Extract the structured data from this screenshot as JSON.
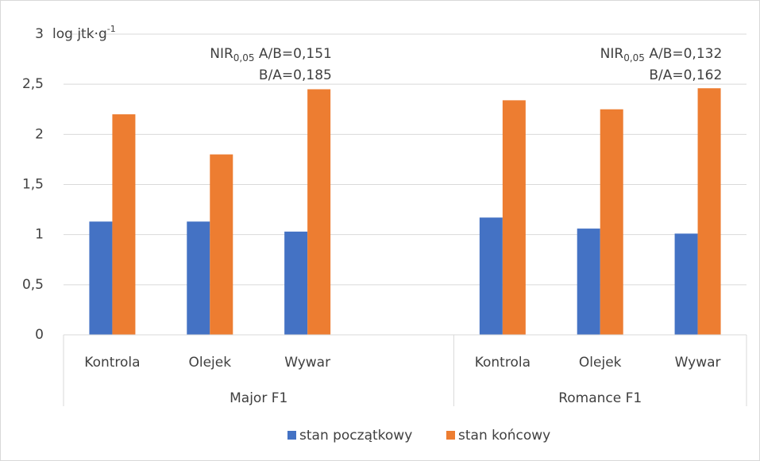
{
  "chart_data": {
    "type": "bar",
    "ylabel": {
      "text": "log jtk·g",
      "sup": "-1"
    },
    "categories": [
      "Kontrola",
      "Olejek",
      "Wywar",
      null,
      "Kontrola",
      "Olejek",
      "Wywar"
    ],
    "groups": [
      {
        "label": "Major F1",
        "span": [
          0,
          3
        ]
      },
      {
        "label": "Romance F1",
        "span": [
          4,
          6
        ]
      }
    ],
    "series": [
      {
        "name": "stan początkowy",
        "color": "#4472c4",
        "values": [
          1.13,
          1.13,
          1.03,
          null,
          1.17,
          1.06,
          1.01
        ]
      },
      {
        "name": "stan końcowy",
        "color": "#ed7d31",
        "values": [
          2.2,
          1.8,
          2.45,
          null,
          2.34,
          2.25,
          2.46
        ]
      }
    ],
    "ylim": [
      0,
      3
    ],
    "yticks": [
      0,
      {
        "value": 0.5,
        "label": "0,5"
      },
      1,
      {
        "value": 1.5,
        "label": "1,5"
      },
      2,
      {
        "value": 2.5,
        "label": "2,5"
      },
      3
    ],
    "grid": true,
    "legend": "bottom",
    "annotations": [
      {
        "main": "NIR",
        "sub": "0,05",
        "rest": " A/B=0,151",
        "line2": "B/A=0,185"
      },
      {
        "main": "NIR",
        "sub": "0,05",
        "rest": " A/B=0,132",
        "line2": "B/A=0,162"
      }
    ]
  }
}
